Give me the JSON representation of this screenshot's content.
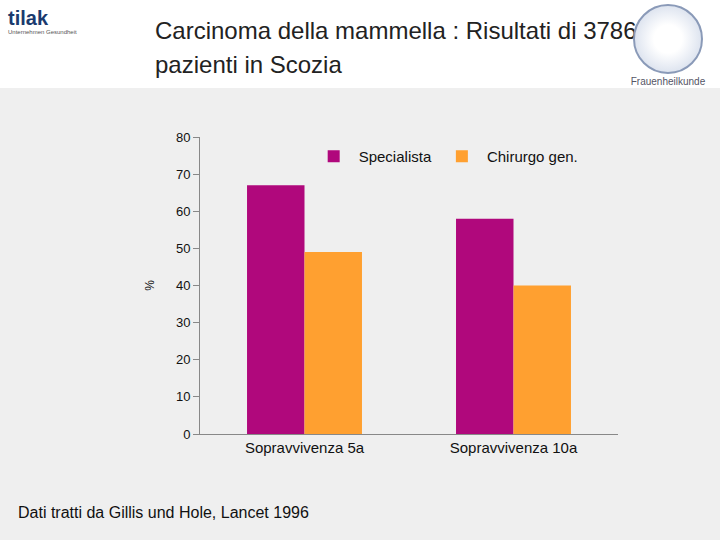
{
  "chart_data": {
    "type": "bar",
    "title": "Carcinoma della mammella : Risultati di 3786 pazienti in Scozia",
    "categories": [
      "Sopravvivenza 5a",
      "Sopravvivenza 10a"
    ],
    "series": [
      {
        "name": "Specialista",
        "color": "#b0087c",
        "values": [
          67,
          58
        ]
      },
      {
        "name": "Chirurgo gen.",
        "color": "#ffa030",
        "values": [
          49,
          40
        ]
      }
    ],
    "ylabel": "%",
    "ylim": [
      0,
      80
    ],
    "yticks": [
      0,
      10,
      20,
      30,
      40,
      50,
      60,
      70,
      80
    ],
    "grid": false,
    "legend": "top",
    "annotations": [
      "Dati tratti da Gillis und Hole, Lancet 1996"
    ]
  },
  "logos": {
    "left": "tilak",
    "left_sub": "Unternehmen Gesundheit",
    "right": "Frauenheilkunde"
  }
}
